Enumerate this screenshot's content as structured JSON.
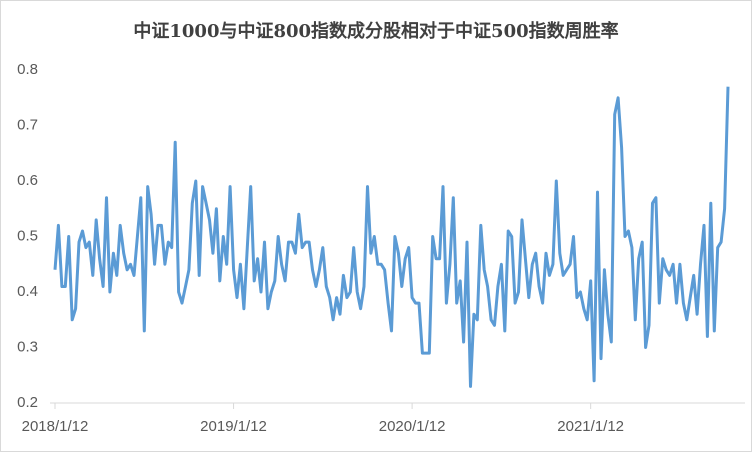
{
  "chart_data": {
    "type": "line",
    "title": "中证1000与中证800指数成分股相对于中证500指数周胜率",
    "categories": [
      "2018/1/12",
      null,
      null,
      null,
      null,
      null,
      null,
      null,
      null,
      null,
      null,
      null,
      null,
      null,
      null,
      null,
      null,
      null,
      null,
      null,
      null,
      null,
      null,
      null,
      null,
      null,
      null,
      null,
      null,
      null,
      null,
      null,
      null,
      null,
      null,
      null,
      null,
      null,
      null,
      null,
      null,
      null,
      null,
      null,
      null,
      null,
      null,
      null,
      null,
      null,
      null,
      null,
      "2019/1/12",
      null,
      null,
      null,
      null,
      null,
      null,
      null,
      null,
      null,
      null,
      null,
      null,
      null,
      null,
      null,
      null,
      null,
      null,
      null,
      null,
      null,
      null,
      null,
      null,
      null,
      null,
      null,
      null,
      null,
      null,
      null,
      null,
      null,
      null,
      null,
      null,
      null,
      null,
      null,
      null,
      null,
      null,
      null,
      null,
      null,
      null,
      null,
      null,
      null,
      null,
      null,
      "2020/1/12",
      null,
      null,
      null,
      null,
      null,
      null,
      null,
      null,
      null,
      null,
      null,
      null,
      null,
      null,
      null,
      null,
      null,
      null,
      null,
      null,
      null,
      null,
      null,
      null,
      null,
      null,
      null,
      null,
      null,
      null,
      null,
      null,
      null,
      null,
      null,
      null,
      null,
      null,
      null,
      null,
      null,
      null,
      null,
      null,
      null,
      null,
      null,
      null,
      null,
      null,
      null,
      "2021/1/12",
      null,
      null,
      null,
      null,
      null,
      null,
      null,
      null,
      null,
      null,
      null,
      null,
      null,
      null,
      null,
      null,
      null,
      null,
      null,
      null,
      null,
      null,
      null,
      null,
      null,
      null,
      null,
      null,
      null,
      null,
      null,
      null,
      null,
      null,
      null,
      null,
      null,
      null,
      null,
      null
    ],
    "series": [
      {
        "color": "#5b9bd5",
        "values": [
          0.44,
          0.52,
          0.41,
          0.41,
          0.5,
          0.35,
          0.37,
          0.49,
          0.51,
          0.48,
          0.49,
          0.43,
          0.53,
          0.46,
          0.41,
          0.57,
          0.4,
          0.47,
          0.43,
          0.52,
          0.47,
          0.44,
          0.45,
          0.43,
          0.5,
          0.57,
          0.33,
          0.59,
          0.54,
          0.45,
          0.52,
          0.52,
          0.45,
          0.49,
          0.48,
          0.67,
          0.4,
          0.38,
          0.41,
          0.44,
          0.56,
          0.6,
          0.43,
          0.59,
          0.56,
          0.53,
          0.47,
          0.55,
          0.42,
          0.5,
          0.45,
          0.59,
          0.44,
          0.39,
          0.45,
          0.37,
          0.48,
          0.59,
          0.42,
          0.46,
          0.4,
          0.49,
          0.37,
          0.4,
          0.42,
          0.5,
          0.45,
          0.42,
          0.49,
          0.49,
          0.47,
          0.54,
          0.48,
          0.49,
          0.49,
          0.44,
          0.41,
          0.44,
          0.48,
          0.41,
          0.39,
          0.35,
          0.39,
          0.36,
          0.43,
          0.39,
          0.4,
          0.48,
          0.4,
          0.37,
          0.41,
          0.59,
          0.47,
          0.5,
          0.45,
          0.45,
          0.44,
          0.38,
          0.33,
          0.5,
          0.47,
          0.41,
          0.46,
          0.48,
          0.39,
          0.38,
          0.38,
          0.29,
          0.29,
          0.29,
          0.5,
          0.46,
          0.46,
          0.59,
          0.38,
          0.45,
          0.57,
          0.38,
          0.42,
          0.31,
          0.49,
          0.23,
          0.36,
          0.35,
          0.52,
          0.44,
          0.41,
          0.35,
          0.34,
          0.41,
          0.45,
          0.33,
          0.51,
          0.5,
          0.38,
          0.4,
          0.53,
          0.46,
          0.39,
          0.45,
          0.47,
          0.41,
          0.38,
          0.47,
          0.43,
          0.45,
          0.6,
          0.47,
          0.43,
          0.44,
          0.45,
          0.5,
          0.39,
          0.4,
          0.37,
          0.35,
          0.42,
          0.24,
          0.58,
          0.28,
          0.44,
          0.36,
          0.31,
          0.72,
          0.75,
          0.66,
          0.5,
          0.51,
          0.48,
          0.35,
          0.46,
          0.49,
          0.3,
          0.34,
          0.56,
          0.57,
          0.38,
          0.46,
          0.44,
          0.43,
          0.45,
          0.38,
          0.45,
          0.38,
          0.35,
          0.39,
          0.43,
          0.36,
          0.45,
          0.52,
          0.32,
          0.56,
          0.33,
          0.48,
          0.49,
          0.55,
          0.77
        ]
      }
    ],
    "ylim": [
      0.2,
      0.8
    ],
    "yticks": [
      0.2,
      0.3,
      0.4,
      0.5,
      0.6,
      0.7,
      0.8
    ],
    "grid": false
  }
}
